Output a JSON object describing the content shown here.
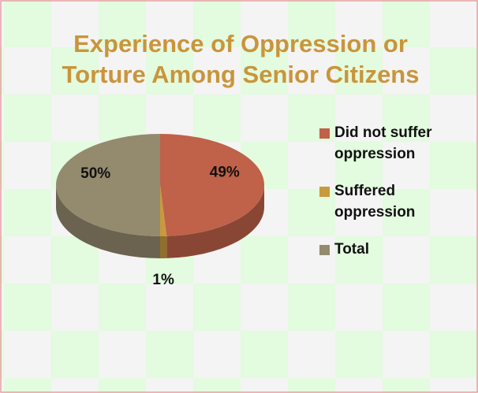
{
  "chart_data": {
    "type": "pie",
    "title": "Experience of Oppression or Torture Among Senior Citizens",
    "categories": [
      "Did not suffer oppression",
      "Suffered oppression",
      "Total"
    ],
    "values": [
      49,
      1,
      50
    ],
    "value_labels": [
      "49%",
      "1%",
      "50%"
    ],
    "colors": [
      "#c0614a",
      "#c89a3c",
      "#948a6e"
    ],
    "legend": "right"
  }
}
